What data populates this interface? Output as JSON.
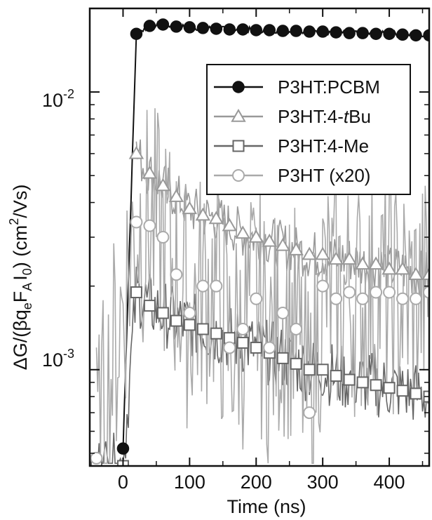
{
  "chart_data": {
    "type": "line",
    "xlabel": "Time (ns)",
    "ylabel": "ΔG/(βqₑF_A I₀) (cm²/Vs)",
    "ylabel_parts": {
      "pre": "ΔG/(βq",
      "sub1": "e",
      "mid": "F",
      "sub2": "A",
      "mid2": "I",
      "sub3": "0",
      "post": ") (cm",
      "sup": "2",
      "end": "/Vs)"
    },
    "xlim": [
      -50,
      460
    ],
    "ylim": [
      0.00045,
      0.02
    ],
    "yscale": "log",
    "x_ticks": [
      0,
      100,
      200,
      300,
      400
    ],
    "x_tick_labels": [
      "0",
      "100",
      "200",
      "300",
      "400"
    ],
    "y_major_ticks": [
      0.001,
      0.01
    ],
    "y_tick_labels": [
      {
        "base": "10",
        "exp": "-3"
      },
      {
        "base": "10",
        "exp": "-2"
      }
    ],
    "grid": false,
    "legend_position": "top-right",
    "series": [
      {
        "name": "P3HT:PCBM",
        "color": "#111111",
        "marker": "filled-circle",
        "points": [
          [
            0,
            0.00052
          ],
          [
            20,
            0.0162
          ],
          [
            40,
            0.0173
          ],
          [
            60,
            0.0175
          ],
          [
            80,
            0.0172
          ],
          [
            100,
            0.0171
          ],
          [
            120,
            0.017
          ],
          [
            140,
            0.0169
          ],
          [
            160,
            0.0168
          ],
          [
            180,
            0.0168
          ],
          [
            200,
            0.0167
          ],
          [
            220,
            0.0167
          ],
          [
            240,
            0.0166
          ],
          [
            260,
            0.0166
          ],
          [
            280,
            0.0165
          ],
          [
            300,
            0.0165
          ],
          [
            320,
            0.0164
          ],
          [
            340,
            0.0163
          ],
          [
            360,
            0.0163
          ],
          [
            380,
            0.0162
          ],
          [
            400,
            0.0162
          ],
          [
            420,
            0.0161
          ],
          [
            440,
            0.016
          ],
          [
            460,
            0.016
          ]
        ]
      },
      {
        "name": "P3HT:4-tBu",
        "color": "#999999",
        "marker": "open-triangle",
        "points": [
          [
            20,
            0.006
          ],
          [
            40,
            0.0051
          ],
          [
            60,
            0.0046
          ],
          [
            80,
            0.0042
          ],
          [
            100,
            0.0038
          ],
          [
            120,
            0.0036
          ],
          [
            140,
            0.0035
          ],
          [
            160,
            0.0033
          ],
          [
            180,
            0.0031
          ],
          [
            200,
            0.003
          ],
          [
            220,
            0.0029
          ],
          [
            240,
            0.0028
          ],
          [
            260,
            0.0027
          ],
          [
            280,
            0.0026
          ],
          [
            300,
            0.0026
          ],
          [
            320,
            0.0025
          ],
          [
            340,
            0.0025
          ],
          [
            360,
            0.0024
          ],
          [
            380,
            0.0024
          ],
          [
            400,
            0.0023
          ],
          [
            420,
            0.0023
          ],
          [
            440,
            0.0022
          ],
          [
            460,
            0.0022
          ]
        ]
      },
      {
        "name": "P3HT:4-Me",
        "color": "#666666",
        "marker": "open-square",
        "points": [
          [
            -40,
            0.00045
          ],
          [
            0,
            0.00045
          ],
          [
            20,
            0.0019
          ],
          [
            40,
            0.0017
          ],
          [
            60,
            0.0016
          ],
          [
            80,
            0.0015
          ],
          [
            100,
            0.00145
          ],
          [
            120,
            0.0014
          ],
          [
            140,
            0.00135
          ],
          [
            160,
            0.0013
          ],
          [
            180,
            0.00125
          ],
          [
            200,
            0.0012
          ],
          [
            220,
            0.00115
          ],
          [
            240,
            0.0011
          ],
          [
            260,
            0.00105
          ],
          [
            280,
            0.001
          ],
          [
            300,
            0.001
          ],
          [
            320,
            0.00095
          ],
          [
            340,
            0.00092
          ],
          [
            360,
            0.0009
          ],
          [
            380,
            0.00088
          ],
          [
            400,
            0.00086
          ],
          [
            420,
            0.00084
          ],
          [
            440,
            0.00082
          ],
          [
            460,
            0.0008
          ]
        ]
      },
      {
        "name": "P3HT (x20)",
        "color": "#aaaaaa",
        "marker": "open-circle",
        "points": [
          [
            -40,
            0.00048
          ],
          [
            20,
            0.0034
          ],
          [
            40,
            0.0033
          ],
          [
            60,
            0.003
          ],
          [
            80,
            0.0022
          ],
          [
            100,
            0.0016
          ],
          [
            120,
            0.002
          ],
          [
            140,
            0.002
          ],
          [
            160,
            0.0012
          ],
          [
            180,
            0.0014
          ],
          [
            200,
            0.0018
          ],
          [
            220,
            0.0012
          ],
          [
            240,
            0.0016
          ],
          [
            260,
            0.0014
          ],
          [
            280,
            0.0007
          ],
          [
            300,
            0.002
          ],
          [
            320,
            0.0018
          ],
          [
            340,
            0.0019
          ],
          [
            360,
            0.0018
          ],
          [
            380,
            0.0019
          ],
          [
            400,
            0.0019
          ],
          [
            420,
            0.0018
          ],
          [
            440,
            0.0018
          ],
          [
            460,
            0.0019
          ]
        ]
      }
    ]
  }
}
